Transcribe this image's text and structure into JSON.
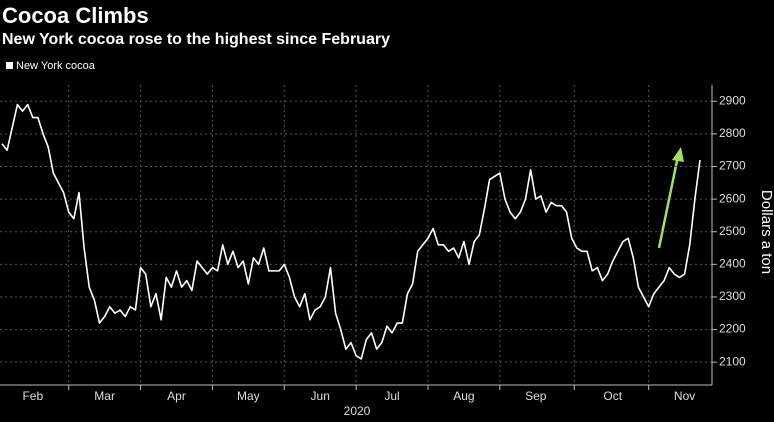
{
  "chart_data": {
    "type": "line",
    "title": "Cocoa Climbs",
    "subtitle": "New York cocoa rose to the highest since February",
    "xlabel": "2020",
    "ylabel": "Dollars a ton",
    "categories": [
      null,
      null,
      null,
      null,
      null,
      null,
      "Feb",
      null,
      null,
      null,
      null,
      null,
      null,
      null,
      null,
      null,
      null,
      null,
      null,
      null,
      "Mar",
      null,
      null,
      null,
      null,
      null,
      null,
      null,
      null,
      null,
      null,
      null,
      null,
      null,
      "Apr",
      null,
      null,
      null,
      null,
      null,
      null,
      null,
      null,
      null,
      null,
      null,
      null,
      null,
      "May",
      null,
      null,
      null,
      null,
      null,
      null,
      null,
      null,
      null,
      null,
      null,
      null,
      null,
      "Jun",
      null,
      null,
      null,
      null,
      null,
      null,
      null,
      null,
      null,
      null,
      null,
      null,
      null,
      "Jul",
      null,
      null,
      null,
      null,
      null,
      null,
      null,
      null,
      null,
      null,
      null,
      null,
      null,
      "Aug",
      null,
      null,
      null,
      null,
      null,
      null,
      null,
      null,
      null,
      null,
      null,
      null,
      null,
      "Sep",
      null,
      null,
      null,
      null,
      null,
      null,
      null,
      null,
      null,
      null,
      null,
      null,
      null,
      null,
      "Oct",
      null,
      null,
      null,
      null,
      null,
      null,
      null,
      null,
      null,
      null,
      null,
      null,
      null,
      "Nov",
      null,
      null,
      null
    ],
    "series": [
      {
        "name": "New York cocoa",
        "color": "#ffffff",
        "values": [
          2770,
          2750,
          2820,
          2890,
          2870,
          2890,
          2850,
          2850,
          2800,
          2760,
          2680,
          2650,
          2620,
          2560,
          2540,
          2620,
          2450,
          2330,
          2290,
          2220,
          2240,
          2270,
          2250,
          2260,
          2240,
          2270,
          2260,
          2390,
          2370,
          2270,
          2310,
          2230,
          2360,
          2330,
          2380,
          2330,
          2350,
          2320,
          2410,
          2390,
          2370,
          2390,
          2380,
          2460,
          2400,
          2440,
          2390,
          2410,
          2340,
          2420,
          2400,
          2450,
          2380,
          2380,
          2380,
          2400,
          2360,
          2300,
          2270,
          2310,
          2230,
          2260,
          2270,
          2300,
          2390,
          2250,
          2200,
          2140,
          2160,
          2120,
          2110,
          2170,
          2190,
          2140,
          2160,
          2210,
          2190,
          2220,
          2220,
          2310,
          2340,
          2440,
          2460,
          2480,
          2510,
          2460,
          2460,
          2440,
          2450,
          2420,
          2470,
          2400,
          2470,
          2490,
          2570,
          2660,
          2670,
          2680,
          2600,
          2560,
          2540,
          2560,
          2600,
          2690,
          2600,
          2610,
          2560,
          2590,
          2580,
          2580,
          2560,
          2480,
          2450,
          2440,
          2440,
          2380,
          2390,
          2350,
          2370,
          2410,
          2440,
          2470,
          2480,
          2420,
          2330,
          2300,
          2270,
          2310,
          2330,
          2350,
          2390,
          2370,
          2360,
          2370,
          2460,
          2600,
          2720
        ]
      }
    ],
    "ylim": [
      2030,
      2950
    ],
    "yticks": [
      2100,
      2200,
      2300,
      2400,
      2500,
      2600,
      2700,
      2800,
      2900
    ],
    "grid": true,
    "legend": "top-left"
  }
}
